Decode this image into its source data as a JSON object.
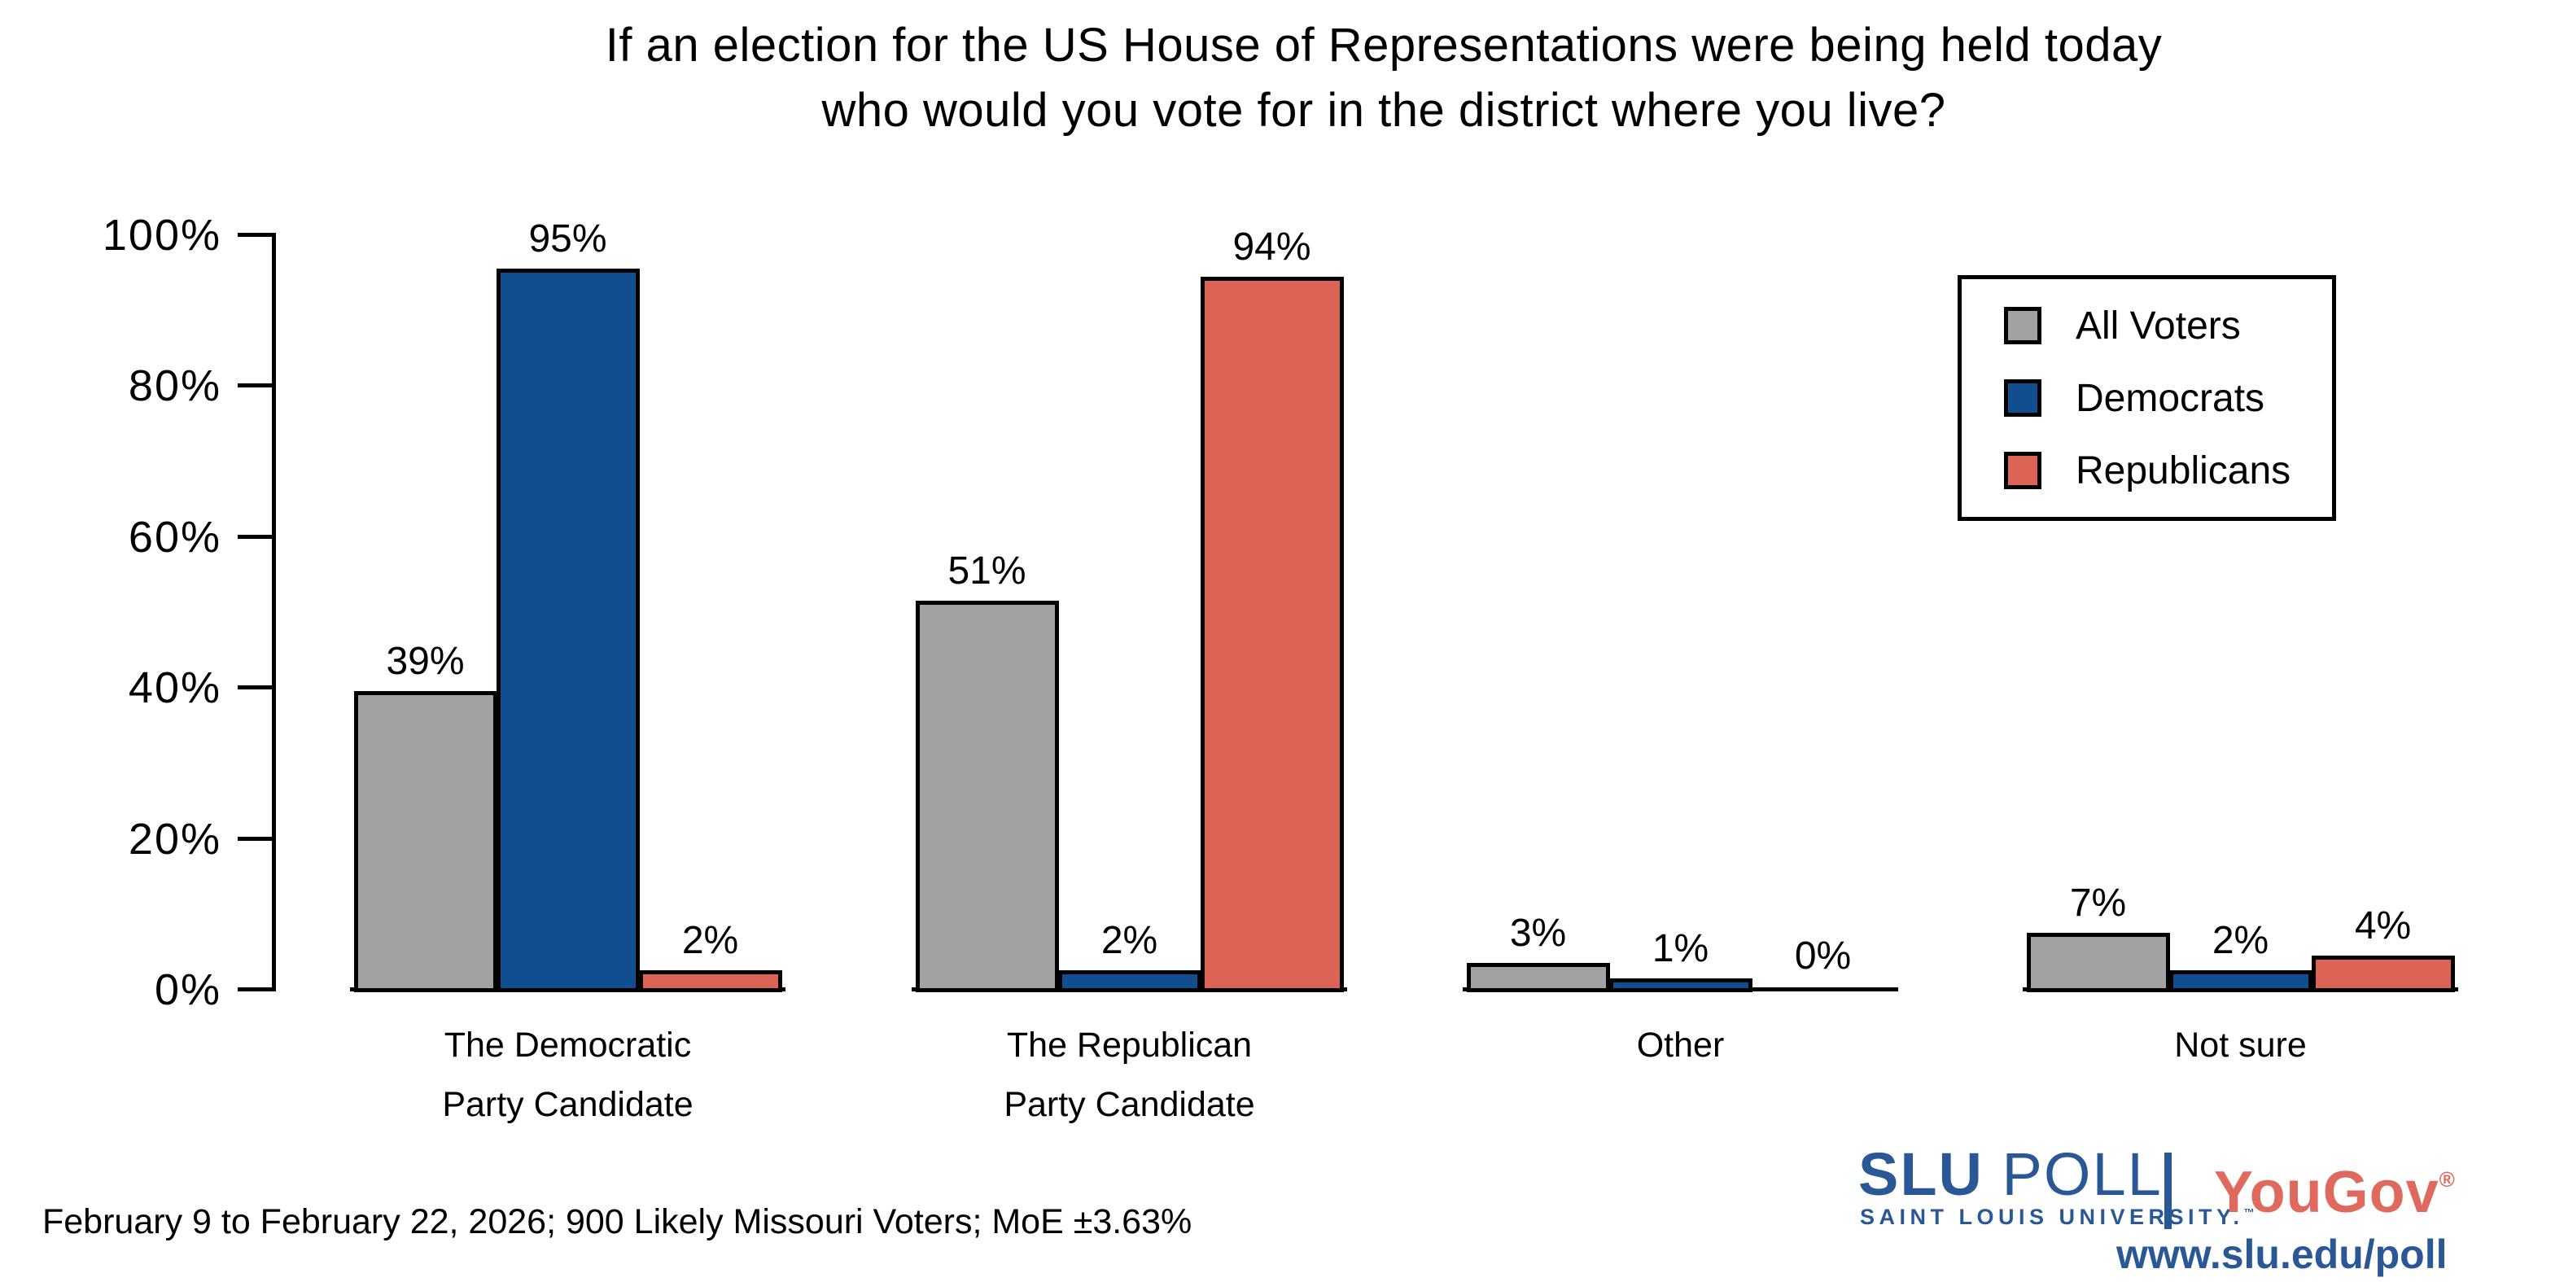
{
  "title": {
    "line1": "If an election for the US House of Representations were being held today",
    "line2": "who would you vote for in the district where you live?"
  },
  "chart_data": {
    "type": "bar",
    "categories": [
      [
        "The Democratic",
        "Party Candidate"
      ],
      [
        "The Republican",
        "Party Candidate"
      ],
      [
        "Other"
      ],
      [
        "Not sure"
      ]
    ],
    "series": [
      {
        "name": "All Voters",
        "color": "#a1a1a1",
        "values": [
          39,
          51,
          3,
          7
        ]
      },
      {
        "name": "Democrats",
        "color": "#114e90",
        "values": [
          95,
          2,
          1,
          2
        ]
      },
      {
        "name": "Republicans",
        "color": "#db6457",
        "values": [
          2,
          94,
          0,
          4
        ]
      }
    ],
    "value_labels": [
      [
        "39%",
        "95%",
        "2%"
      ],
      [
        "51%",
        "2%",
        "94%"
      ],
      [
        "3%",
        "1%",
        "0%"
      ],
      [
        "7%",
        "2%",
        "4%"
      ]
    ],
    "ylim": [
      0,
      100
    ],
    "yticks": [
      "0%",
      "20%",
      "40%",
      "60%",
      "80%",
      "100%"
    ],
    "grid": false,
    "legend_position": "top-right"
  },
  "legend": {
    "items": [
      {
        "label": "All Voters",
        "color": "#a1a1a1"
      },
      {
        "label": "Democrats",
        "color": "#114e90"
      },
      {
        "label": "Republicans",
        "color": "#db6457"
      }
    ]
  },
  "footer": {
    "source_note": "February 9 to February 22, 2026; 900 Likely Missouri Voters; MoE ±3.63%"
  },
  "branding": {
    "slu_bold": "SLU",
    "slu_light": " POLL",
    "slu_subtitle": "SAINT LOUIS UNIVERSITY.",
    "slu_tm": "™",
    "yougov": "YouGov",
    "yougov_reg": "®",
    "url": "www.slu.edu/poll",
    "slu_blue": "#2a5795",
    "yougov_red": "#df695c"
  }
}
